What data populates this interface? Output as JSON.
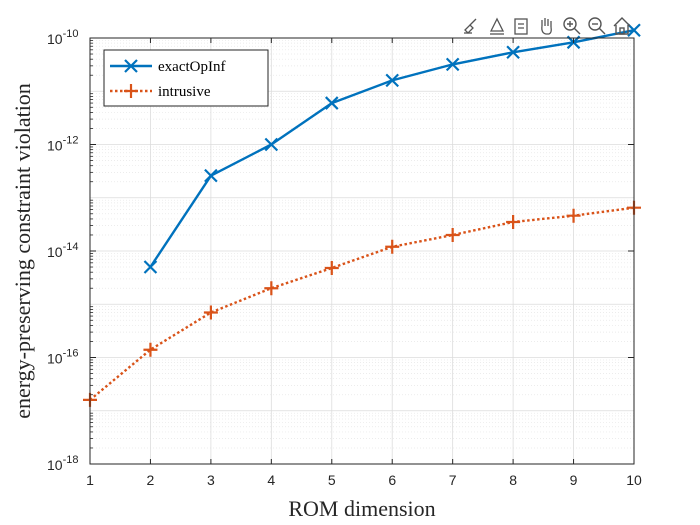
{
  "chart_data": {
    "type": "line",
    "xlabel": "ROM dimension",
    "ylabel": "energy-preserving constraint violation",
    "xlim": [
      1,
      10
    ],
    "ylim": [
      1e-18,
      1e-10
    ],
    "yscale": "log",
    "grid": true,
    "minor_grid": true,
    "x_ticks": [
      "1",
      "2",
      "3",
      "4",
      "5",
      "6",
      "7",
      "8",
      "9",
      "10"
    ],
    "y_ticks": [
      {
        "mantissa": "10",
        "exp": "-18",
        "value": 1e-18
      },
      {
        "mantissa": "10",
        "exp": "-16",
        "value": 1e-16
      },
      {
        "mantissa": "10",
        "exp": "-14",
        "value": 1e-14
      },
      {
        "mantissa": "10",
        "exp": "-12",
        "value": 1e-12
      },
      {
        "mantissa": "10",
        "exp": "-10",
        "value": 1e-10
      }
    ],
    "legend_position": "top-left",
    "series": [
      {
        "name": "exactOpInf",
        "color": "#0072BD",
        "marker": "x",
        "line_style": "solid",
        "x": [
          2,
          3,
          4,
          5,
          6,
          7,
          8,
          9,
          10
        ],
        "y": [
          5e-15,
          2.6e-13,
          1e-12,
          6e-12,
          1.6e-11,
          3.2e-11,
          5.4e-11,
          8.3e-11,
          1.4e-10
        ]
      },
      {
        "name": "intrusive",
        "color": "#D95319",
        "marker": "+",
        "line_style": "dotted",
        "x": [
          1,
          2,
          3,
          4,
          5,
          6,
          7,
          8,
          9,
          10
        ],
        "y": [
          1.6e-17,
          1.4e-16,
          7e-16,
          2e-15,
          4.8e-15,
          1.2e-14,
          2e-14,
          3.5e-14,
          4.6e-14,
          6.5e-14
        ]
      }
    ]
  },
  "toolbar": {
    "icons": [
      "brush-icon",
      "data-tips-icon",
      "legend-icon",
      "pan-hand-icon",
      "zoom-in-icon",
      "zoom-out-icon",
      "home-icon"
    ]
  }
}
